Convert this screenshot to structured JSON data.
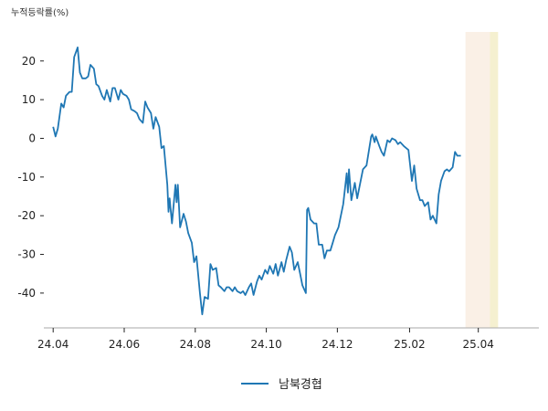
{
  "chart_data": {
    "type": "line",
    "ylabel": "누적등락률(%)",
    "xlabel": "",
    "ylim": [
      -49,
      27.5
    ],
    "yticks": [
      20,
      10,
      0,
      -10,
      -20,
      -30,
      -40
    ],
    "x_tick_labels": [
      "24.04",
      "24.06",
      "24.08",
      "24.10",
      "24.12",
      "25.02",
      "25.04"
    ],
    "x_ticks": [
      "2024-04-01",
      "2024-06-01",
      "2024-08-01",
      "2024-10-01",
      "2024-12-01",
      "2025-02-01",
      "2025-04-01"
    ],
    "xlim": [
      "2024-03-24",
      "2025-05-23"
    ],
    "grid": false,
    "legend_position": "bottom-center",
    "highlight_spans": [
      {
        "start": "2025-03-21",
        "end": "2025-04-11",
        "color": "#faf0e6"
      },
      {
        "start": "2025-04-11",
        "end": "2025-04-18",
        "color": "#f5f0d0"
      }
    ],
    "series": [
      {
        "name": "남북경협",
        "color": "#1f77b4",
        "points": [
          [
            "2024-04-01",
            3
          ],
          [
            "2024-04-03",
            0.5
          ],
          [
            "2024-04-05",
            2.5
          ],
          [
            "2024-04-08",
            9
          ],
          [
            "2024-04-10",
            8
          ],
          [
            "2024-04-12",
            11
          ],
          [
            "2024-04-15",
            12
          ],
          [
            "2024-04-17",
            12
          ],
          [
            "2024-04-19",
            21
          ],
          [
            "2024-04-22",
            23.5
          ],
          [
            "2024-04-24",
            17
          ],
          [
            "2024-04-26",
            15.5
          ],
          [
            "2024-04-29",
            15.5
          ],
          [
            "2024-05-01",
            16
          ],
          [
            "2024-05-03",
            19
          ],
          [
            "2024-05-06",
            18
          ],
          [
            "2024-05-08",
            14
          ],
          [
            "2024-05-10",
            13.5
          ],
          [
            "2024-05-13",
            11
          ],
          [
            "2024-05-15",
            10
          ],
          [
            "2024-05-17",
            12.5
          ],
          [
            "2024-05-20",
            9.5
          ],
          [
            "2024-05-22",
            13
          ],
          [
            "2024-05-24",
            13
          ],
          [
            "2024-05-27",
            10
          ],
          [
            "2024-05-29",
            12.5
          ],
          [
            "2024-05-31",
            11.5
          ],
          [
            "2024-06-03",
            11
          ],
          [
            "2024-06-05",
            10
          ],
          [
            "2024-06-07",
            7.5
          ],
          [
            "2024-06-10",
            7
          ],
          [
            "2024-06-12",
            6.5
          ],
          [
            "2024-06-14",
            5
          ],
          [
            "2024-06-17",
            4
          ],
          [
            "2024-06-19",
            9.5
          ],
          [
            "2024-06-21",
            8
          ],
          [
            "2024-06-24",
            6.5
          ],
          [
            "2024-06-26",
            2.5
          ],
          [
            "2024-06-28",
            5.5
          ],
          [
            "2024-07-01",
            3
          ],
          [
            "2024-07-03",
            -2.5
          ],
          [
            "2024-07-05",
            -2
          ],
          [
            "2024-07-08",
            -12
          ],
          [
            "2024-07-09",
            -19
          ],
          [
            "2024-07-10",
            -15.5
          ],
          [
            "2024-07-12",
            -22
          ],
          [
            "2024-07-15",
            -12
          ],
          [
            "2024-07-16",
            -16.5
          ],
          [
            "2024-07-17",
            -12
          ],
          [
            "2024-07-19",
            -23
          ],
          [
            "2024-07-22",
            -19.5
          ],
          [
            "2024-07-24",
            -21.5
          ],
          [
            "2024-07-26",
            -24.5
          ],
          [
            "2024-07-29",
            -27
          ],
          [
            "2024-07-31",
            -32
          ],
          [
            "2024-08-02",
            -30.5
          ],
          [
            "2024-08-05",
            -40
          ],
          [
            "2024-08-07",
            -45.5
          ],
          [
            "2024-08-09",
            -41
          ],
          [
            "2024-08-12",
            -41.5
          ],
          [
            "2024-08-14",
            -32.5
          ],
          [
            "2024-08-16",
            -34
          ],
          [
            "2024-08-19",
            -33.5
          ],
          [
            "2024-08-21",
            -38
          ],
          [
            "2024-08-23",
            -38.5
          ],
          [
            "2024-08-26",
            -39.5
          ],
          [
            "2024-08-28",
            -38.5
          ],
          [
            "2024-08-30",
            -38.5
          ],
          [
            "2024-09-02",
            -39.5
          ],
          [
            "2024-09-04",
            -38.5
          ],
          [
            "2024-09-06",
            -39.5
          ],
          [
            "2024-09-09",
            -40
          ],
          [
            "2024-09-11",
            -39.5
          ],
          [
            "2024-09-13",
            -40.5
          ],
          [
            "2024-09-16",
            -38.5
          ],
          [
            "2024-09-18",
            -37.5
          ],
          [
            "2024-09-20",
            -40.5
          ],
          [
            "2024-09-23",
            -37
          ],
          [
            "2024-09-25",
            -35.5
          ],
          [
            "2024-09-27",
            -36.5
          ],
          [
            "2024-09-30",
            -34
          ],
          [
            "2024-10-02",
            -35
          ],
          [
            "2024-10-04",
            -33
          ],
          [
            "2024-10-07",
            -35
          ],
          [
            "2024-10-09",
            -32.5
          ],
          [
            "2024-10-11",
            -35.5
          ],
          [
            "2024-10-14",
            -32
          ],
          [
            "2024-10-16",
            -34.5
          ],
          [
            "2024-10-18",
            -31.5
          ],
          [
            "2024-10-21",
            -28
          ],
          [
            "2024-10-23",
            -29.5
          ],
          [
            "2024-10-25",
            -34
          ],
          [
            "2024-10-28",
            -32
          ],
          [
            "2024-10-30",
            -35
          ],
          [
            "2024-11-01",
            -38
          ],
          [
            "2024-11-04",
            -40
          ],
          [
            "2024-11-05",
            -18.5
          ],
          [
            "2024-11-06",
            -18
          ],
          [
            "2024-11-08",
            -21
          ],
          [
            "2024-11-11",
            -22
          ],
          [
            "2024-11-13",
            -22
          ],
          [
            "2024-11-15",
            -27.5
          ],
          [
            "2024-11-18",
            -27.5
          ],
          [
            "2024-11-20",
            -31
          ],
          [
            "2024-11-22",
            -29
          ],
          [
            "2024-11-25",
            -29
          ],
          [
            "2024-11-27",
            -27
          ],
          [
            "2024-11-29",
            -25
          ],
          [
            "2024-12-02",
            -23
          ],
          [
            "2024-12-04",
            -20
          ],
          [
            "2024-12-06",
            -17
          ],
          [
            "2024-12-09",
            -9
          ],
          [
            "2024-12-10",
            -14
          ],
          [
            "2024-12-11",
            -8
          ],
          [
            "2024-12-13",
            -16
          ],
          [
            "2024-12-16",
            -11.5
          ],
          [
            "2024-12-18",
            -15.5
          ],
          [
            "2024-12-20",
            -12.5
          ],
          [
            "2024-12-23",
            -8
          ],
          [
            "2024-12-26",
            -7
          ],
          [
            "2024-12-30",
            0.5
          ],
          [
            "2024-12-31",
            1
          ],
          [
            "2025-01-02",
            -1
          ],
          [
            "2025-01-03",
            0.5
          ],
          [
            "2025-01-06",
            -2
          ],
          [
            "2025-01-08",
            -3.5
          ],
          [
            "2025-01-10",
            -4.5
          ],
          [
            "2025-01-13",
            -0.5
          ],
          [
            "2025-01-15",
            -1
          ],
          [
            "2025-01-17",
            0
          ],
          [
            "2025-01-20",
            -0.5
          ],
          [
            "2025-01-22",
            -1.5
          ],
          [
            "2025-01-24",
            -1
          ],
          [
            "2025-01-27",
            -2
          ],
          [
            "2025-01-31",
            -3
          ],
          [
            "2025-02-03",
            -11
          ],
          [
            "2025-02-05",
            -7
          ],
          [
            "2025-02-07",
            -13
          ],
          [
            "2025-02-10",
            -16
          ],
          [
            "2025-02-12",
            -16
          ],
          [
            "2025-02-14",
            -17.5
          ],
          [
            "2025-02-17",
            -16.5
          ],
          [
            "2025-02-19",
            -21
          ],
          [
            "2025-02-21",
            -20
          ],
          [
            "2025-02-24",
            -22
          ],
          [
            "2025-02-26",
            -14.5
          ],
          [
            "2025-02-28",
            -11
          ],
          [
            "2025-03-03",
            -8.5
          ],
          [
            "2025-03-05",
            -8
          ],
          [
            "2025-03-07",
            -8.5
          ],
          [
            "2025-03-10",
            -7.5
          ],
          [
            "2025-03-12",
            -3.5
          ],
          [
            "2025-03-14",
            -4.5
          ],
          [
            "2025-03-17",
            -4.5
          ]
        ]
      }
    ]
  }
}
